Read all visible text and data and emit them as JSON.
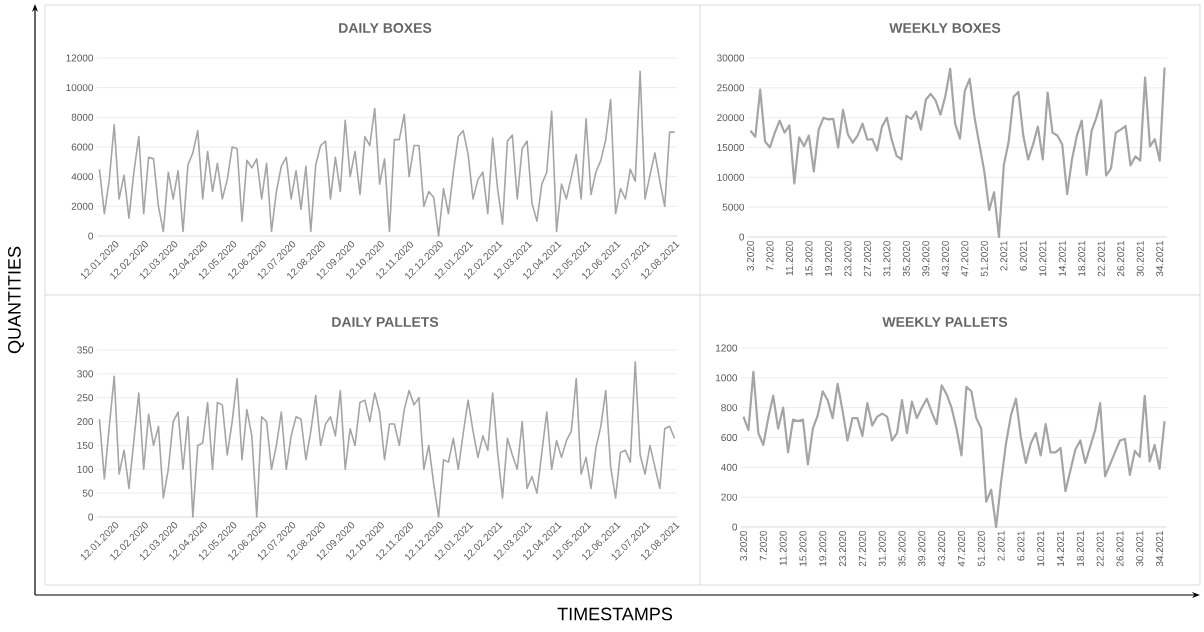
{
  "chart_data": [
    {
      "type": "line",
      "title": "DAILY BOXES",
      "annotations": [
        "QUANTITIES",
        "TIMESTAMPS"
      ],
      "categories": [
        "12.01.2020",
        null,
        null,
        null,
        null,
        null,
        "12.02.2020",
        null,
        null,
        null,
        null,
        null,
        "12.03.2020",
        null,
        null,
        null,
        null,
        null,
        "12.04.2020",
        null,
        null,
        null,
        null,
        null,
        "12.05.2020",
        null,
        null,
        null,
        null,
        null,
        "12.06.2020",
        null,
        null,
        null,
        null,
        null,
        "12.07.2020",
        null,
        null,
        null,
        null,
        null,
        "12.08.2020",
        null,
        null,
        null,
        null,
        null,
        "12.09.2020",
        null,
        null,
        null,
        null,
        null,
        "12.10.2020",
        null,
        null,
        null,
        null,
        null,
        "12.11.2020",
        null,
        null,
        null,
        null,
        null,
        "12.12.2020",
        null,
        null,
        null,
        null,
        null,
        "12.01.2021",
        null,
        null,
        null,
        null,
        null,
        "12.02.2021",
        null,
        null,
        null,
        null,
        null,
        "12.03.2021",
        null,
        null,
        null,
        null,
        null,
        "12.04.2021",
        null,
        null,
        null,
        null,
        null,
        "12.05.2021",
        null,
        null,
        null,
        null,
        null,
        "12.06.2021",
        null,
        null,
        null,
        null,
        null,
        "12.07.2021",
        null,
        null,
        null,
        null,
        null,
        "12.08.2021",
        null,
        null,
        null
      ],
      "series": [
        {
          "color": "#a5a5a5",
          "values": [
            4500,
            1500,
            3800,
            7500,
            2500,
            4100,
            1200,
            4300,
            6700,
            1500,
            5300,
            5200,
            2000,
            300,
            4300,
            2500,
            4400,
            300,
            4800,
            5600,
            7100,
            2500,
            5700,
            3000,
            4900,
            2500,
            3800,
            6000,
            5900,
            1000,
            5100,
            4600,
            5200,
            2500,
            4900,
            300,
            3000,
            4700,
            5300,
            2500,
            4400,
            1800,
            4700,
            300,
            4800,
            6100,
            6400,
            2500,
            5300,
            3000,
            7800,
            4000,
            5700,
            2800,
            6700,
            6100,
            8600,
            3500,
            5200,
            300,
            6500,
            6500,
            8200,
            4000,
            6100,
            6100,
            2000,
            3000,
            2600,
            0,
            3200,
            1500,
            4300,
            6700,
            7100,
            5500,
            2500,
            3800,
            4300,
            1500,
            6600,
            3200,
            800,
            6400,
            6800,
            2500,
            5900,
            6400,
            2200,
            1000,
            3500,
            4300,
            8400,
            300,
            3500,
            2500,
            4000,
            5500,
            2500,
            7900,
            2800,
            4300,
            5100,
            6500,
            9200,
            1500,
            3200,
            2500,
            4500,
            3700,
            11100,
            2500,
            4100,
            5600,
            3700,
            2000,
            7000,
            7000
          ]
        }
      ],
      "ylim": [
        0,
        12000
      ],
      "yticks": [
        0,
        2000,
        4000,
        6000,
        8000,
        10000,
        12000
      ],
      "grid": "y",
      "marker": "none",
      "line_style": "solid"
    },
    {
      "type": "line",
      "title": "WEEKLY BOXES",
      "categories": [
        "3.2020",
        null,
        null,
        null,
        "7.2020",
        null,
        null,
        null,
        "11.2020",
        null,
        null,
        null,
        "15.2020",
        null,
        null,
        null,
        "19.2020",
        null,
        null,
        null,
        "23.2020",
        null,
        null,
        null,
        "27.2020",
        null,
        null,
        null,
        "31.2020",
        null,
        null,
        null,
        "35.2020",
        null,
        null,
        null,
        "39.2020",
        null,
        null,
        null,
        "43.2020",
        null,
        null,
        null,
        "47.2020",
        null,
        null,
        null,
        "51.2020",
        null,
        null,
        null,
        "2.2021",
        null,
        null,
        null,
        "6.2021",
        null,
        null,
        null,
        "10.2021",
        null,
        null,
        null,
        "14.2021",
        null,
        null,
        null,
        "18.2021",
        null,
        null,
        null,
        "22.2021",
        null,
        null,
        null,
        "26.2021",
        null,
        null,
        null,
        "30.2021",
        null,
        null,
        null,
        "34.2021",
        null
      ],
      "series": [
        {
          "color": "#a5a5a5",
          "values": [
            17800,
            16800,
            24700,
            16000,
            15000,
            17500,
            19500,
            17500,
            18700,
            9000,
            16700,
            15200,
            17000,
            11000,
            18000,
            20000,
            19700,
            19800,
            15000,
            21300,
            17200,
            15800,
            17000,
            19000,
            16300,
            16400,
            14500,
            18500,
            20000,
            16300,
            13600,
            13000,
            20300,
            19800,
            21000,
            18000,
            23000,
            24000,
            22900,
            20500,
            23600,
            28200,
            19000,
            16500,
            24500,
            26500,
            20000,
            15500,
            11000,
            4500,
            7500,
            0,
            12000,
            16000,
            23500,
            24300,
            17000,
            13000,
            15500,
            18500,
            13000,
            24200,
            17500,
            17000,
            15500,
            7200,
            13000,
            17000,
            19500,
            10400,
            17700,
            20000,
            22900,
            10300,
            11500,
            17500,
            18000,
            18600,
            12000,
            13500,
            12800,
            26700,
            15200,
            16400,
            12800,
            28400
          ]
        }
      ],
      "ylim": [
        0,
        30000
      ],
      "yticks": [
        0,
        5000,
        10000,
        15000,
        20000,
        25000,
        30000
      ],
      "grid": "y",
      "marker": "none",
      "line_style": "solid"
    },
    {
      "type": "line",
      "title": "DAILY PALLETS",
      "categories": [
        "12.01.2020",
        null,
        null,
        null,
        null,
        null,
        "12.02.2020",
        null,
        null,
        null,
        null,
        null,
        "12.03.2020",
        null,
        null,
        null,
        null,
        null,
        "12.04.2020",
        null,
        null,
        null,
        null,
        null,
        "12.05.2020",
        null,
        null,
        null,
        null,
        null,
        "12.06.2020",
        null,
        null,
        null,
        null,
        null,
        "12.07.2020",
        null,
        null,
        null,
        null,
        null,
        "12.08.2020",
        null,
        null,
        null,
        null,
        null,
        "12.09.2020",
        null,
        null,
        null,
        null,
        null,
        "12.10.2020",
        null,
        null,
        null,
        null,
        null,
        "12.11.2020",
        null,
        null,
        null,
        null,
        null,
        "12.12.2020",
        null,
        null,
        null,
        null,
        null,
        "12.01.2021",
        null,
        null,
        null,
        null,
        null,
        "12.02.2021",
        null,
        null,
        null,
        null,
        null,
        "12.03.2021",
        null,
        null,
        null,
        null,
        null,
        "12.04.2021",
        null,
        null,
        null,
        null,
        null,
        "12.05.2021",
        null,
        null,
        null,
        null,
        null,
        "12.06.2021",
        null,
        null,
        null,
        null,
        null,
        "12.07.2021",
        null,
        null,
        null,
        null,
        null,
        "12.08.2021",
        null,
        null,
        null
      ],
      "series": [
        {
          "color": "#a5a5a5",
          "values": [
            205,
            80,
            190,
            295,
            90,
            140,
            60,
            160,
            260,
            100,
            215,
            150,
            190,
            40,
            100,
            200,
            220,
            100,
            210,
            0,
            150,
            155,
            240,
            100,
            240,
            235,
            130,
            200,
            290,
            120,
            225,
            170,
            0,
            210,
            200,
            100,
            150,
            220,
            100,
            170,
            210,
            205,
            120,
            180,
            255,
            150,
            195,
            210,
            170,
            265,
            100,
            185,
            150,
            240,
            245,
            200,
            260,
            220,
            120,
            195,
            195,
            150,
            225,
            265,
            235,
            250,
            100,
            150,
            70,
            0,
            120,
            115,
            165,
            100,
            175,
            245,
            180,
            125,
            170,
            140,
            260,
            135,
            40,
            165,
            130,
            100,
            200,
            60,
            85,
            50,
            135,
            220,
            100,
            160,
            125,
            160,
            180,
            290,
            90,
            125,
            60,
            145,
            190,
            265,
            105,
            40,
            135,
            140,
            115,
            325,
            130,
            90,
            150,
            105,
            60,
            185,
            190,
            165
          ]
        }
      ],
      "ylim": [
        0,
        350
      ],
      "yticks": [
        0,
        50,
        100,
        150,
        200,
        250,
        300,
        350
      ],
      "grid": "y",
      "marker": "none",
      "line_style": "solid"
    },
    {
      "type": "line",
      "title": "WEEKLY PALLETS",
      "categories": [
        "3.2020",
        null,
        null,
        null,
        "7.2020",
        null,
        null,
        null,
        "11.2020",
        null,
        null,
        null,
        "15.2020",
        null,
        null,
        null,
        "19.2020",
        null,
        null,
        null,
        "23.2020",
        null,
        null,
        null,
        "27.2020",
        null,
        null,
        null,
        "31.2020",
        null,
        null,
        null,
        "35.2020",
        null,
        null,
        null,
        "39.2020",
        null,
        null,
        null,
        "43.2020",
        null,
        null,
        null,
        "47.2020",
        null,
        null,
        null,
        "51.2020",
        null,
        null,
        null,
        "2.2021",
        null,
        null,
        null,
        "6.2021",
        null,
        null,
        null,
        "10.2021",
        null,
        null,
        null,
        "14.2021",
        null,
        null,
        null,
        "18.2021",
        null,
        null,
        null,
        "22.2021",
        null,
        null,
        null,
        "26.2021",
        null,
        null,
        null,
        "30.2021",
        null,
        null,
        null,
        "34.2021",
        null
      ],
      "series": [
        {
          "color": "#a5a5a5",
          "values": [
            740,
            650,
            1040,
            630,
            550,
            730,
            880,
            660,
            800,
            500,
            720,
            710,
            720,
            420,
            660,
            750,
            910,
            850,
            730,
            960,
            780,
            580,
            730,
            730,
            610,
            830,
            680,
            740,
            760,
            740,
            580,
            630,
            850,
            630,
            840,
            730,
            800,
            860,
            770,
            690,
            950,
            890,
            800,
            660,
            480,
            940,
            910,
            730,
            660,
            170,
            250,
            0,
            300,
            560,
            750,
            860,
            600,
            430,
            560,
            630,
            480,
            690,
            500,
            500,
            530,
            240,
            380,
            520,
            580,
            430,
            540,
            650,
            830,
            340,
            420,
            500,
            580,
            590,
            350,
            510,
            470,
            880,
            440,
            550,
            390,
            710
          ]
        }
      ],
      "ylim": [
        0,
        1200
      ],
      "yticks": [
        0,
        200,
        400,
        600,
        800,
        1000,
        1200
      ],
      "grid": "y",
      "marker": "none",
      "line_style": "solid"
    }
  ]
}
